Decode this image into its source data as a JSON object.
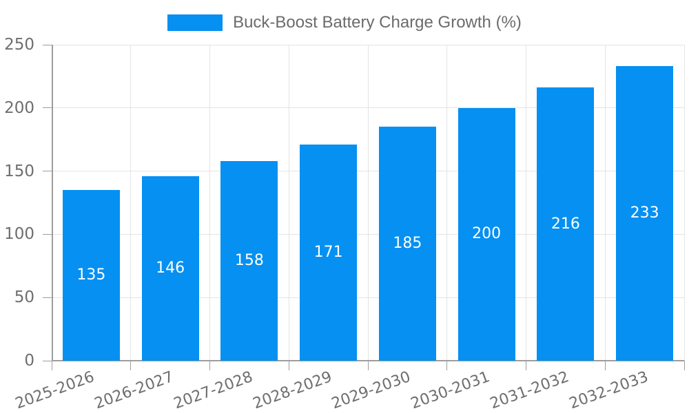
{
  "legend": {
    "label": "Buck-Boost Battery Charge Growth (%)"
  },
  "chart_data": {
    "type": "bar",
    "title": "Buck-Boost Battery Charge Growth (%)",
    "categories": [
      "2025-2026",
      "2026-2027",
      "2027-2028",
      "2028-2029",
      "2029-2030",
      "2030-2031",
      "2031-2032",
      "2032-2033"
    ],
    "values": [
      135,
      146,
      158,
      171,
      185,
      200,
      216,
      233
    ],
    "xlabel": "",
    "ylabel": "",
    "ylim": [
      0,
      250
    ],
    "yticks": [
      0,
      50,
      100,
      150,
      200,
      250
    ],
    "grid": true,
    "legend_position": "top",
    "value_labels": "inside-center",
    "x_label_rotation_deg": -20
  },
  "colors": {
    "bar": "#0590f2",
    "value_label_text": "#ffffff",
    "grid": "#e4e4e4",
    "axis": "#9d9d9d",
    "tick_text": "#6e6e6e",
    "legend_text": "#6b6b6b"
  }
}
